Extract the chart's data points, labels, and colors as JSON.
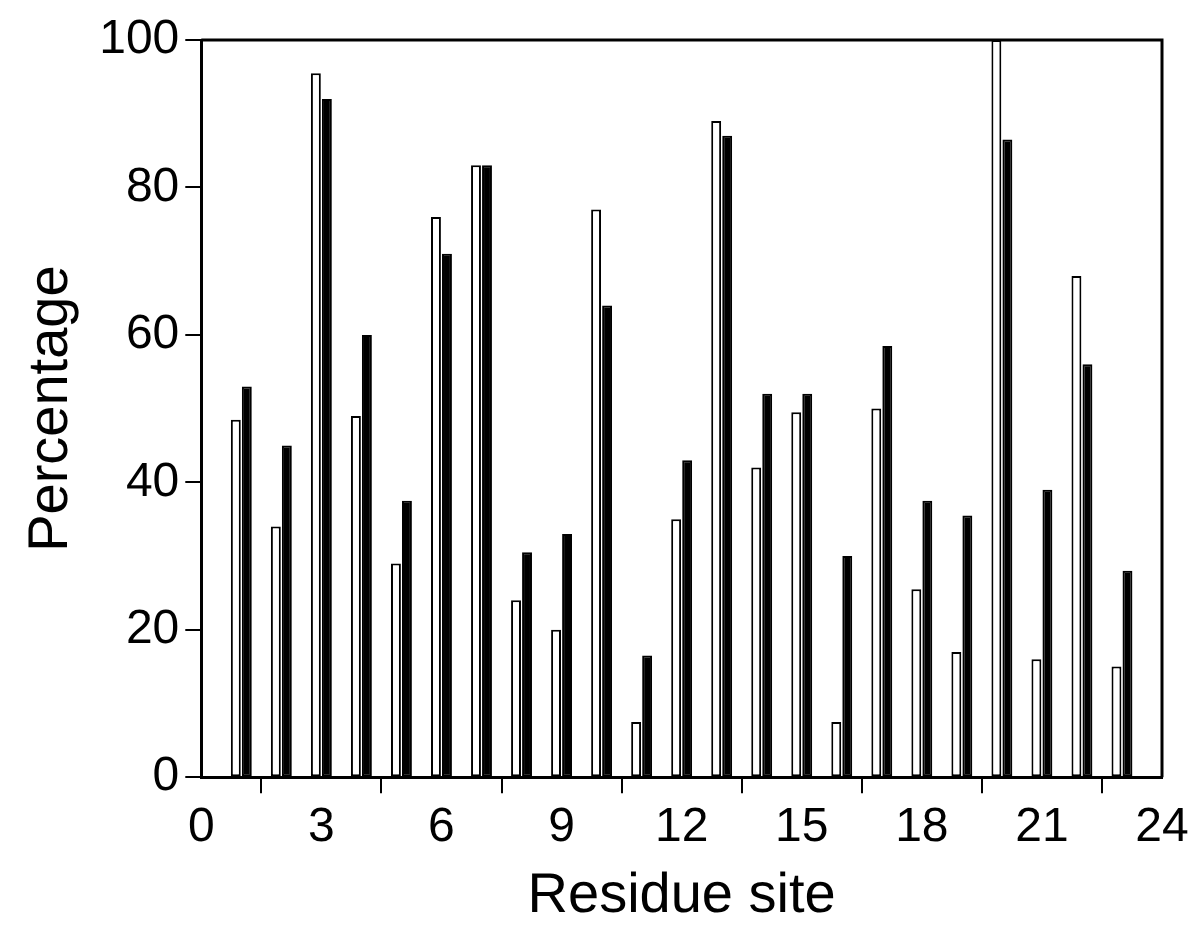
{
  "chart_data": {
    "type": "bar",
    "xlabel": "Residue site",
    "ylabel": "Percentage",
    "x": [
      1,
      2,
      3,
      4,
      5,
      6,
      7,
      8,
      9,
      10,
      11,
      12,
      13,
      14,
      15,
      16,
      17,
      18,
      19,
      20,
      21,
      22,
      23
    ],
    "series": [
      {
        "color": "#ffffff",
        "values": [
          48.5,
          34,
          95.5,
          49,
          29,
          76,
          83,
          24,
          20,
          77,
          7.5,
          35,
          89,
          42,
          49.5,
          7.5,
          50,
          25.5,
          17,
          100,
          16,
          68,
          15
        ]
      },
      {
        "color": "#000000",
        "values": [
          53,
          45,
          92,
          60,
          37.5,
          71,
          83,
          30.5,
          33,
          64,
          16.5,
          43,
          87,
          52,
          52,
          30,
          58.5,
          37.5,
          35.5,
          86.5,
          39,
          56,
          28
        ]
      }
    ],
    "xlim": [
      0,
      24
    ],
    "xticks": [
      0,
      3,
      6,
      9,
      12,
      15,
      18,
      21,
      24
    ],
    "ylim": [
      0,
      100
    ],
    "yticks": [
      0,
      20,
      40,
      60,
      80,
      100
    ],
    "grid": false,
    "legend": false
  }
}
